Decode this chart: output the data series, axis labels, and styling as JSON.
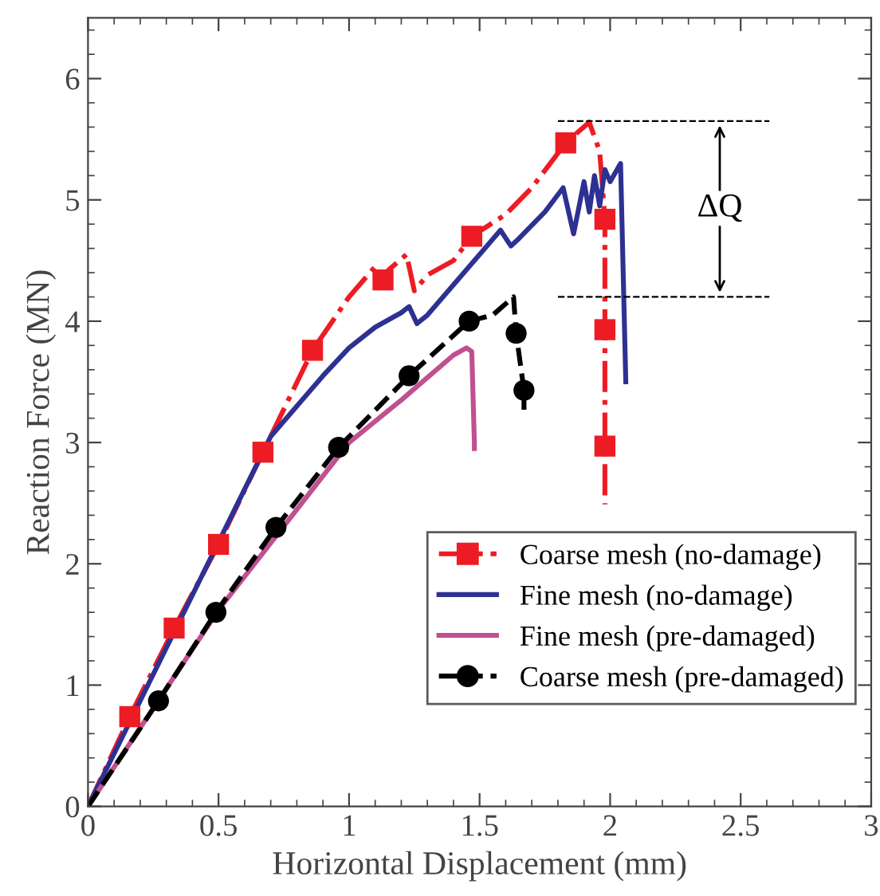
{
  "chart_data": {
    "type": "line",
    "xlabel": "Horizontal Displacement (mm)",
    "ylabel": "Reaction Force (MN)",
    "xlim": [
      0,
      3
    ],
    "xticks": [
      0,
      0.5,
      1,
      1.5,
      2,
      2.5,
      3
    ],
    "ylim": [
      0,
      6.5
    ],
    "yticks": [
      0,
      1,
      2,
      3,
      4,
      5,
      6
    ],
    "grid": false,
    "legend": "bottom right",
    "series": [
      {
        "name": "Coarse mesh (no-damage)",
        "color": "#ed1c24",
        "line_style": "dashdot",
        "marker": "none",
        "x": [
          0,
          0.16,
          0.33,
          0.5,
          0.67,
          0.86,
          1.0,
          1.1,
          1.13,
          1.15,
          1.22,
          1.25,
          1.3,
          1.4,
          1.47,
          1.6,
          1.7,
          1.83,
          1.92,
          1.96,
          1.98,
          1.98,
          1.98,
          1.98
        ],
        "values": [
          0,
          0.74,
          1.47,
          2.16,
          2.92,
          3.76,
          4.2,
          4.45,
          4.34,
          4.42,
          4.55,
          4.25,
          4.38,
          4.5,
          4.7,
          4.88,
          5.1,
          5.47,
          5.64,
          5.4,
          4.84,
          3.93,
          2.97,
          2.49
        ]
      },
      {
        "name": "Fine mesh (no-damage)",
        "color": "#2e3192",
        "line_style": "solid",
        "marker": "none",
        "x": [
          0,
          0.7,
          0.8,
          0.9,
          1.0,
          1.1,
          1.2,
          1.23,
          1.26,
          1.3,
          1.4,
          1.5,
          1.58,
          1.62,
          1.65,
          1.75,
          1.82,
          1.86,
          1.9,
          1.92,
          1.94,
          1.96,
          1.98,
          2.0,
          2.04,
          2.06
        ],
        "values": [
          0,
          3.05,
          3.3,
          3.55,
          3.78,
          3.95,
          4.07,
          4.12,
          3.98,
          4.05,
          4.3,
          4.55,
          4.75,
          4.62,
          4.68,
          4.9,
          5.1,
          4.72,
          5.15,
          4.9,
          5.2,
          4.95,
          5.25,
          5.15,
          5.3,
          3.5
        ]
      },
      {
        "name": "Fine mesh (pre-damaged)",
        "color": "#c0508f",
        "line_style": "solid",
        "marker": "none",
        "x": [
          0,
          0.5,
          1.0,
          1.2,
          1.4,
          1.45,
          1.47,
          1.48,
          1.48
        ],
        "values": [
          0,
          1.62,
          3.0,
          3.35,
          3.72,
          3.78,
          3.75,
          3.0,
          2.95
        ]
      },
      {
        "name": "Coarse mesh (pre-damaged)",
        "color": "#000000",
        "line_style": "dashed",
        "marker": "none",
        "x": [
          0,
          0.27,
          0.49,
          0.72,
          0.96,
          1.23,
          1.46,
          1.55,
          1.63,
          1.64,
          1.67,
          1.67
        ],
        "values": [
          0,
          0.87,
          1.6,
          2.3,
          2.96,
          3.55,
          4.0,
          4.05,
          4.2,
          3.9,
          3.43,
          3.27
        ]
      },
      {
        "type": "scatter",
        "color": "#ed1c24",
        "marker": "square",
        "x": [
          0.16,
          0.33,
          0.5,
          0.67,
          0.86,
          1.13,
          1.47,
          1.83,
          1.98,
          1.98,
          1.98
        ],
        "values": [
          0.74,
          1.47,
          2.16,
          2.92,
          3.76,
          4.34,
          4.7,
          5.47,
          4.84,
          3.93,
          2.97
        ]
      },
      {
        "type": "scatter",
        "color": "#000000",
        "marker": "circle",
        "x": [
          0.27,
          0.49,
          0.72,
          0.96,
          1.23,
          1.46,
          1.64,
          1.67
        ],
        "values": [
          0.87,
          1.6,
          2.3,
          2.96,
          3.55,
          4.0,
          3.9,
          3.43
        ]
      }
    ],
    "ref_lines": [
      {
        "axis": "y",
        "value": 5.65,
        "color": "#000000",
        "line_style": "dashed"
      },
      {
        "axis": "y",
        "value": 4.2,
        "color": "#000000",
        "line_style": "dashed"
      }
    ],
    "annotations": [
      {
        "text": "ΔQ",
        "x": 2.42,
        "y": 4.93
      }
    ]
  }
}
